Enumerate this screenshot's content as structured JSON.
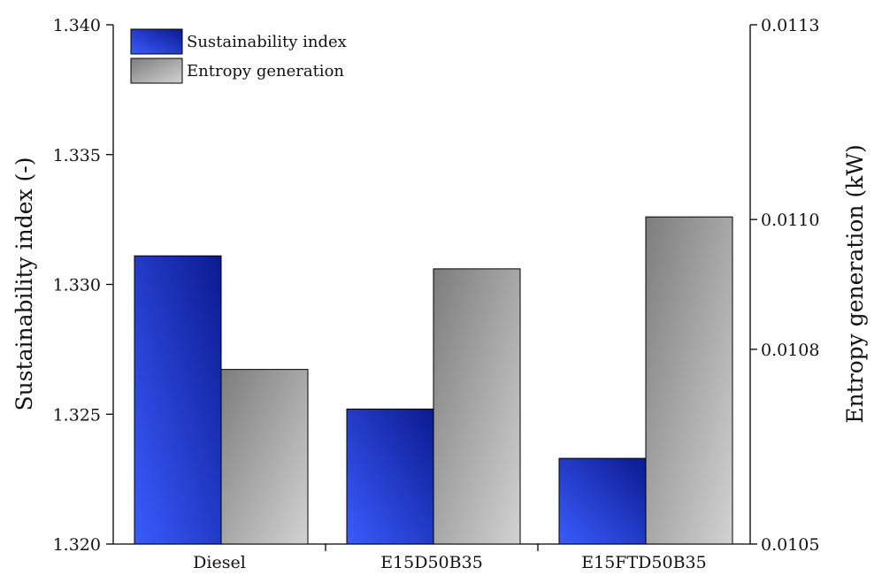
{
  "chart_data": {
    "type": "bar",
    "categories": [
      "Diesel",
      "E15D50B35",
      "E15FTD50B35"
    ],
    "series": [
      {
        "name": "Sustainability index",
        "axis": "left",
        "values": [
          1.3311,
          1.3252,
          1.3233
        ],
        "color": "#2f4bff"
      },
      {
        "name": "Entropy generation",
        "axis": "right",
        "values": [
          0.010769,
          0.010924,
          0.011004
        ],
        "color": "#9a9a9a"
      }
    ],
    "ylabel": "Sustainability index (-)",
    "ylabel_right": "Entropy generation (kW)",
    "ylim": [
      1.32,
      1.34
    ],
    "ylim_right": [
      0.0105,
      0.0113
    ],
    "yticks": [
      "1.320",
      "1.325",
      "1.330",
      "1.335",
      "1.340"
    ],
    "yticks_right": [
      "0.0105",
      "0.0108",
      "0.0110",
      "0.0113"
    ],
    "legend_position": "top-left",
    "grid": false
  }
}
